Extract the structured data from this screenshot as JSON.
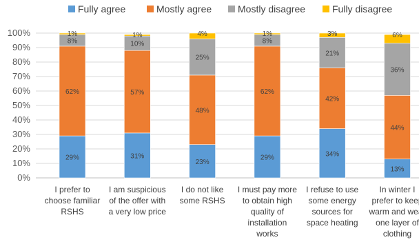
{
  "chart_data": {
    "type": "bar",
    "stacked": true,
    "percent_stacked": true,
    "categories": [
      [
        "I prefer to",
        "choose familiar",
        "RSHS"
      ],
      [
        "I am suspicious",
        "of the offer with",
        "a very low price"
      ],
      [
        "I do not like",
        "some RSHS"
      ],
      [
        "I must pay more",
        "to obtain high",
        "quality of",
        "installation",
        "works"
      ],
      [
        "I refuse to use",
        "some energy",
        "sources for",
        "space heating"
      ],
      [
        "In winter I",
        "prefer to keep",
        "warm and wear",
        "one layer of",
        "clothing"
      ]
    ],
    "series": [
      {
        "name": "Fully agree",
        "color": "#5B9BD5",
        "values": [
          29,
          31,
          23,
          29,
          34,
          13
        ],
        "labels": [
          "29%",
          "31%",
          "23%",
          "29%",
          "34%",
          "13%"
        ]
      },
      {
        "name": "Mostly agree",
        "color": "#ED7D31",
        "values": [
          62,
          57,
          48,
          62,
          42,
          44
        ],
        "labels": [
          "62%",
          "57%",
          "48%",
          "62%",
          "42%",
          "44%"
        ]
      },
      {
        "name": "Mostly disagree",
        "color": "#A5A5A5",
        "values": [
          8,
          10,
          25,
          8,
          21,
          36
        ],
        "labels": [
          "8%",
          "10%",
          "25%",
          "8%",
          "21%",
          "36%"
        ]
      },
      {
        "name": "Fully disagree",
        "color": "#FFC000",
        "values": [
          1,
          1,
          4,
          1,
          3,
          6
        ],
        "labels": [
          "1%",
          "1%",
          "4%",
          "1%",
          "3%",
          "6%"
        ]
      }
    ],
    "y_ticks": [
      "0%",
      "10%",
      "20%",
      "30%",
      "40%",
      "50%",
      "60%",
      "70%",
      "80%",
      "90%",
      "100%"
    ],
    "ylim": [
      0,
      100
    ],
    "grid": true,
    "legend_position": "top"
  }
}
